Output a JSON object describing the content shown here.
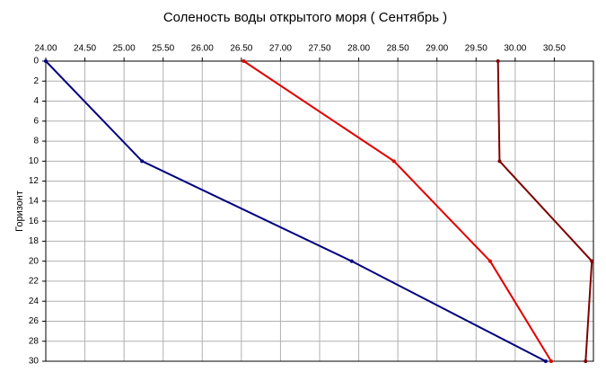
{
  "chart_data": {
    "type": "line",
    "title": "Соленость воды открытого моря    ( Сентябрь )",
    "y_label": "Горизонт",
    "series": [
      {
        "name": "navy",
        "color": "#000080",
        "x": [
          24.0,
          25.23,
          27.91,
          30.39
        ],
        "values": [
          0,
          10,
          20,
          30
        ]
      },
      {
        "name": "red",
        "color": "#e00000",
        "x": [
          26.53,
          28.45,
          29.68,
          30.46
        ],
        "values": [
          0,
          10,
          20,
          30
        ]
      },
      {
        "name": "maroon",
        "color": "#800000",
        "x": [
          29.78,
          29.8,
          30.98,
          30.9
        ],
        "values": [
          0,
          10,
          20,
          30
        ]
      }
    ],
    "xlim": [
      24.0,
      31.0
    ],
    "xticks": [
      {
        "value": 24.0,
        "label": "24.00"
      },
      {
        "value": 24.5,
        "label": "24.50"
      },
      {
        "value": 25.0,
        "label": "25.00"
      },
      {
        "value": 25.5,
        "label": "25.50"
      },
      {
        "value": 26.0,
        "label": "26.00"
      },
      {
        "value": 26.5,
        "label": "26.50"
      },
      {
        "value": 27.0,
        "label": "27.00"
      },
      {
        "value": 27.5,
        "label": "27.50"
      },
      {
        "value": 28.0,
        "label": "28.00"
      },
      {
        "value": 28.5,
        "label": "28.50"
      },
      {
        "value": 29.0,
        "label": "29.00"
      },
      {
        "value": 29.5,
        "label": "29.50"
      },
      {
        "value": 30.0,
        "label": "30.00"
      },
      {
        "value": 30.5,
        "label": "30.50"
      }
    ],
    "ylim": [
      0,
      30
    ],
    "yticks": [
      0,
      2,
      4,
      6,
      8,
      10,
      12,
      14,
      16,
      18,
      20,
      22,
      24,
      26,
      28,
      30
    ],
    "y_inverted": true,
    "grid": true
  }
}
